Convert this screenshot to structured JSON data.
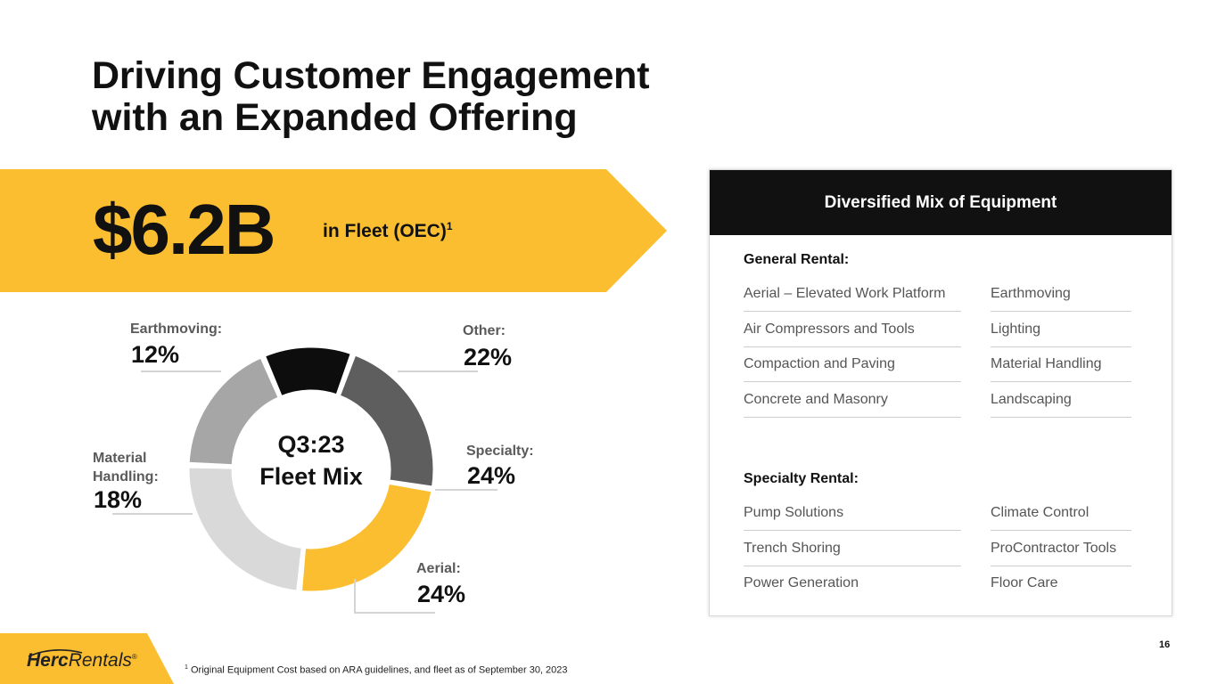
{
  "title": {
    "line1": "Driving Customer Engagement",
    "line2": "with an Expanded Offering"
  },
  "banner": {
    "value": "$6.2B",
    "label": "in Fleet (OEC)",
    "footnote_mark": "1",
    "color": "#FBBE31"
  },
  "chart_data": {
    "type": "pie",
    "style": "donut",
    "title_lines": [
      "Q3:23",
      "Fleet Mix"
    ],
    "start_angle_deg": 20,
    "direction": "clockwise",
    "slices": [
      {
        "key": "other",
        "label": "Other:",
        "value_text": "22%",
        "value": 22,
        "color": "#5E5E5E"
      },
      {
        "key": "specialty",
        "label": "Specialty:",
        "value_text": "24%",
        "value": 24,
        "color": "#FBBE31"
      },
      {
        "key": "aerial",
        "label": "Aerial:",
        "value_text": "24%",
        "value": 24,
        "color": "#D9D9D9"
      },
      {
        "key": "material",
        "label": "Material Handling:",
        "label_lines": [
          "Material",
          "Handling:"
        ],
        "value_text": "18%",
        "value": 18,
        "color": "#A6A6A6"
      },
      {
        "key": "earthmoving",
        "label": "Earthmoving:",
        "value_text": "12%",
        "value": 12,
        "color": "#0D0D0D"
      }
    ]
  },
  "panel": {
    "header": "Diversified Mix of Equipment",
    "general": {
      "title": "General Rental:",
      "left": [
        "Aerial – Elevated Work Platform",
        "Air Compressors and Tools",
        "Compaction and Paving",
        "Concrete and Masonry"
      ],
      "right": [
        "Earthmoving",
        "Lighting",
        "Material Handling",
        "Landscaping"
      ]
    },
    "specialty": {
      "title": "Specialty Rental:",
      "left": [
        "Pump Solutions",
        "Trench Shoring",
        "Power Generation"
      ],
      "right": [
        "Climate Control",
        "ProContractor Tools",
        "Floor Care"
      ]
    }
  },
  "footer": {
    "logo_bold": "Herc",
    "logo_rest": "Rentals",
    "logo_mark": "®",
    "footnote_mark": "1",
    "footnote": "Original Equipment Cost based on ARA guidelines, and fleet as of September 30, 2023",
    "page": "16"
  }
}
